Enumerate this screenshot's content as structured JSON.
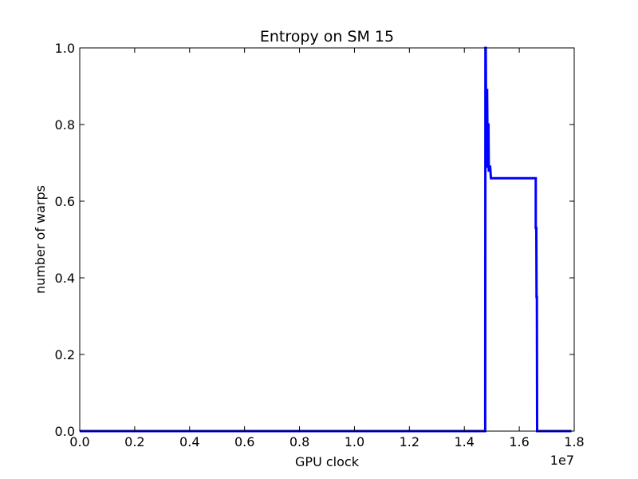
{
  "chart_data": {
    "type": "line",
    "title": "Entropy on SM 15",
    "xlabel": "GPU clock",
    "ylabel": "number of warps",
    "x_offset_label": "1e7",
    "xlim": [
      0,
      1.8
    ],
    "ylim": [
      0,
      1.0
    ],
    "x_ticks": [
      0.0,
      0.2,
      0.4,
      0.6,
      0.8,
      1.0,
      1.2,
      1.4,
      1.6,
      1.8
    ],
    "x_tick_labels": [
      "0.0",
      "0.2",
      "0.4",
      "0.6",
      "0.8",
      "1.0",
      "1.2",
      "1.4",
      "1.6",
      "1.8"
    ],
    "y_ticks": [
      0.0,
      0.2,
      0.4,
      0.6,
      0.8,
      1.0
    ],
    "y_tick_labels": [
      "0.0",
      "0.2",
      "0.4",
      "0.6",
      "0.8",
      "1.0"
    ],
    "grid": false,
    "series": [
      {
        "color": "#0000ff",
        "x": [
          0.0,
          1.476,
          1.477,
          1.478,
          1.48,
          1.481,
          1.482,
          1.483,
          1.485,
          1.486,
          1.487,
          1.488,
          1.489,
          1.49,
          1.492,
          1.492,
          1.494,
          1.497,
          1.498,
          1.66,
          1.66,
          1.662,
          1.663,
          1.664,
          1.665,
          1.665,
          1.79
        ],
        "y": [
          0.0,
          0.0,
          1.0,
          1.0,
          0.7,
          0.7,
          0.89,
          0.89,
          0.69,
          0.69,
          0.8,
          0.8,
          0.68,
          0.68,
          0.69,
          0.69,
          0.69,
          0.66,
          0.66,
          0.66,
          0.53,
          0.53,
          0.35,
          0.35,
          0.0,
          0.0,
          0.0
        ]
      }
    ]
  }
}
